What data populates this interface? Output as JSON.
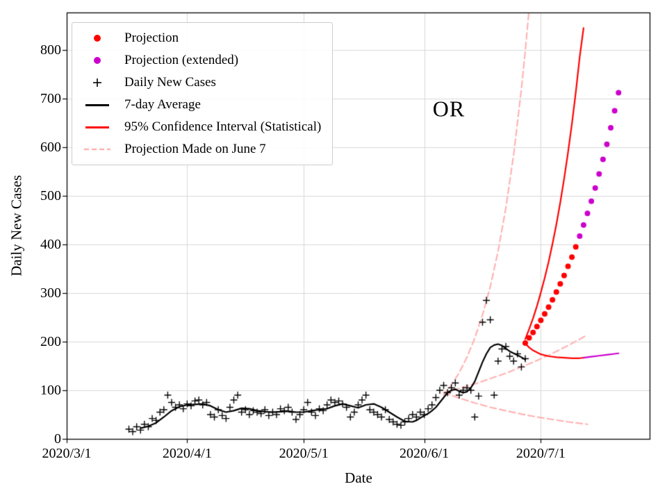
{
  "chart_data": {
    "type": "line",
    "title": "",
    "annotation": {
      "text": "OR"
    },
    "grid": true,
    "legend_position": "upper left",
    "colors": {
      "projection": "#ff0000",
      "projection_extended": "#cc00cc",
      "daily_cases": "#000000",
      "average": "#000000",
      "confidence_interval": "#ff0000",
      "june7_projection": "#ffb3b3",
      "gridline": "#d8d8d8"
    },
    "x_axis": {
      "label": "Date",
      "unit": "days since 2020/3/1",
      "range": [
        0,
        150
      ],
      "ticks": [
        {
          "day": 0,
          "label": "2020/3/1"
        },
        {
          "day": 31,
          "label": "2020/4/1"
        },
        {
          "day": 61,
          "label": "2020/5/1"
        },
        {
          "day": 92,
          "label": "2020/6/1"
        },
        {
          "day": 122,
          "label": "2020/7/1"
        }
      ]
    },
    "y_axis": {
      "label": "Daily New Cases",
      "range": [
        0,
        877
      ],
      "ticks": [
        {
          "value": 0,
          "label": "0"
        },
        {
          "value": 100,
          "label": "100"
        },
        {
          "value": 200,
          "label": "200"
        },
        {
          "value": 300,
          "label": "300"
        },
        {
          "value": 400,
          "label": "400"
        },
        {
          "value": 500,
          "label": "500"
        },
        {
          "value": 600,
          "label": "600"
        },
        {
          "value": 700,
          "label": "700"
        },
        {
          "value": 800,
          "label": "800"
        }
      ]
    },
    "series": [
      {
        "name": "Projection Made on June 7 (upper bound)",
        "type": "line",
        "color": "#ffb3b3",
        "dash": [
          9,
          5
        ],
        "width": 2.2,
        "points": [
          [
            97,
            90
          ],
          [
            99,
            111
          ],
          [
            101,
            136
          ],
          [
            103,
            168
          ],
          [
            105,
            207
          ],
          [
            107,
            255
          ],
          [
            109,
            313
          ],
          [
            111,
            386
          ],
          [
            113,
            475
          ],
          [
            115,
            584
          ],
          [
            117,
            719
          ],
          [
            118,
            798
          ],
          [
            119,
            885
          ]
        ]
      },
      {
        "name": "Projection Made on June 7 (central)",
        "type": "line",
        "color": "#ffb3b3",
        "dash": [
          9,
          5
        ],
        "width": 2.2,
        "points": [
          [
            97,
            95
          ],
          [
            101,
            104
          ],
          [
            105,
            113
          ],
          [
            109,
            124
          ],
          [
            113,
            135
          ],
          [
            117,
            148
          ],
          [
            121,
            161
          ],
          [
            125,
            176
          ],
          [
            129,
            192
          ],
          [
            132,
            205
          ],
          [
            134,
            214
          ]
        ]
      },
      {
        "name": "Projection Made on June 7 (lower bound)",
        "type": "line",
        "color": "#ffb3b3",
        "dash": [
          9,
          5
        ],
        "width": 2.2,
        "points": [
          [
            97,
            95
          ],
          [
            101,
            84
          ],
          [
            105,
            74
          ],
          [
            109,
            65
          ],
          [
            113,
            58
          ],
          [
            117,
            51
          ],
          [
            121,
            45
          ],
          [
            125,
            40
          ],
          [
            129,
            35
          ],
          [
            132,
            32
          ],
          [
            134,
            30
          ]
        ]
      },
      {
        "name": "7-day Average",
        "type": "line",
        "color": "#000000",
        "width": 2.2,
        "points": [
          [
            19,
            22
          ],
          [
            21,
            26
          ],
          [
            23,
            33
          ],
          [
            25,
            45
          ],
          [
            27,
            58
          ],
          [
            29,
            66
          ],
          [
            31,
            70
          ],
          [
            33,
            71
          ],
          [
            35,
            72
          ],
          [
            37,
            68
          ],
          [
            39,
            60
          ],
          [
            41,
            55
          ],
          [
            43,
            58
          ],
          [
            45,
            63
          ],
          [
            47,
            62
          ],
          [
            49,
            58
          ],
          [
            51,
            56
          ],
          [
            53,
            55
          ],
          [
            55,
            56
          ],
          [
            57,
            57
          ],
          [
            59,
            55
          ],
          [
            61,
            55
          ],
          [
            63,
            58
          ],
          [
            65,
            60
          ],
          [
            67,
            62
          ],
          [
            69,
            68
          ],
          [
            71,
            72
          ],
          [
            73,
            68
          ],
          [
            75,
            64
          ],
          [
            77,
            70
          ],
          [
            79,
            72
          ],
          [
            81,
            65
          ],
          [
            83,
            55
          ],
          [
            85,
            45
          ],
          [
            87,
            36
          ],
          [
            89,
            35
          ],
          [
            90,
            38
          ],
          [
            91,
            43
          ],
          [
            92,
            48
          ],
          [
            93,
            52
          ],
          [
            94,
            58
          ],
          [
            95,
            65
          ],
          [
            96,
            75
          ],
          [
            97,
            85
          ],
          [
            98,
            95
          ],
          [
            99,
            100
          ],
          [
            100,
            102
          ],
          [
            101,
            98
          ],
          [
            102,
            95
          ],
          [
            103,
            97
          ],
          [
            104,
            105
          ],
          [
            105,
            118
          ],
          [
            106,
            138
          ],
          [
            107,
            158
          ],
          [
            108,
            175
          ],
          [
            109,
            188
          ],
          [
            110,
            193
          ],
          [
            111,
            195
          ],
          [
            112,
            192
          ],
          [
            113,
            186
          ],
          [
            114,
            180
          ],
          [
            115,
            176
          ],
          [
            116,
            172
          ],
          [
            117,
            168
          ],
          [
            118,
            163
          ]
        ]
      },
      {
        "name": "Daily New Cases",
        "type": "scatter",
        "marker": "plus",
        "color": "#000000",
        "size": 9,
        "points": [
          [
            16,
            20
          ],
          [
            17,
            15
          ],
          [
            18,
            25
          ],
          [
            19,
            18
          ],
          [
            20,
            30
          ],
          [
            21,
            25
          ],
          [
            22,
            42
          ],
          [
            23,
            38
          ],
          [
            24,
            55
          ],
          [
            25,
            60
          ],
          [
            26,
            90
          ],
          [
            27,
            75
          ],
          [
            28,
            65
          ],
          [
            29,
            70
          ],
          [
            30,
            62
          ],
          [
            31,
            72
          ],
          [
            32,
            68
          ],
          [
            33,
            78
          ],
          [
            34,
            80
          ],
          [
            35,
            70
          ],
          [
            36,
            75
          ],
          [
            37,
            50
          ],
          [
            38,
            45
          ],
          [
            39,
            60
          ],
          [
            40,
            48
          ],
          [
            41,
            42
          ],
          [
            42,
            65
          ],
          [
            43,
            80
          ],
          [
            44,
            90
          ],
          [
            45,
            55
          ],
          [
            46,
            60
          ],
          [
            47,
            50
          ],
          [
            48,
            58
          ],
          [
            49,
            55
          ],
          [
            50,
            52
          ],
          [
            51,
            60
          ],
          [
            52,
            48
          ],
          [
            53,
            55
          ],
          [
            54,
            50
          ],
          [
            55,
            62
          ],
          [
            56,
            58
          ],
          [
            57,
            65
          ],
          [
            58,
            55
          ],
          [
            59,
            40
          ],
          [
            60,
            50
          ],
          [
            61,
            60
          ],
          [
            62,
            75
          ],
          [
            63,
            55
          ],
          [
            64,
            48
          ],
          [
            65,
            62
          ],
          [
            66,
            58
          ],
          [
            67,
            70
          ],
          [
            68,
            80
          ],
          [
            69,
            75
          ],
          [
            70,
            78
          ],
          [
            71,
            72
          ],
          [
            72,
            65
          ],
          [
            73,
            45
          ],
          [
            74,
            55
          ],
          [
            75,
            70
          ],
          [
            76,
            80
          ],
          [
            77,
            90
          ],
          [
            78,
            60
          ],
          [
            79,
            55
          ],
          [
            80,
            50
          ],
          [
            81,
            45
          ],
          [
            82,
            60
          ],
          [
            83,
            40
          ],
          [
            84,
            35
          ],
          [
            85,
            30
          ],
          [
            86,
            28
          ],
          [
            87,
            35
          ],
          [
            88,
            42
          ],
          [
            89,
            50
          ],
          [
            90,
            45
          ],
          [
            91,
            55
          ],
          [
            92,
            50
          ],
          [
            93,
            62
          ],
          [
            94,
            70
          ],
          [
            95,
            85
          ],
          [
            96,
            100
          ],
          [
            97,
            110
          ],
          [
            98,
            95
          ],
          [
            99,
            105
          ],
          [
            100,
            115
          ],
          [
            101,
            90
          ],
          [
            102,
            100
          ],
          [
            103,
            105
          ],
          [
            104,
            100
          ],
          [
            105,
            45
          ],
          [
            106,
            88
          ],
          [
            107,
            240
          ],
          [
            108,
            285
          ],
          [
            109,
            245
          ],
          [
            110,
            90
          ],
          [
            111,
            160
          ],
          [
            112,
            185
          ],
          [
            113,
            190
          ],
          [
            114,
            170
          ],
          [
            115,
            160
          ],
          [
            116,
            175
          ],
          [
            117,
            148
          ],
          [
            118,
            165
          ]
        ]
      },
      {
        "name": "95% Confidence Interval upper",
        "type": "line",
        "color": "#ff0000",
        "width": 2.2,
        "points": [
          [
            118,
            205
          ],
          [
            119,
            226
          ],
          [
            120,
            248
          ],
          [
            121,
            273
          ],
          [
            122,
            301
          ],
          [
            123,
            331
          ],
          [
            124,
            364
          ],
          [
            125,
            401
          ],
          [
            126,
            441
          ],
          [
            127,
            486
          ],
          [
            128,
            535
          ],
          [
            129,
            589
          ],
          [
            130,
            648
          ],
          [
            131,
            713
          ],
          [
            132,
            785
          ],
          [
            133,
            845
          ]
        ]
      },
      {
        "name": "95% Confidence Interval lower",
        "type": "line",
        "color": "#ff0000",
        "width": 2.2,
        "points": [
          [
            118,
            196
          ],
          [
            119,
            188
          ],
          [
            120,
            182
          ],
          [
            122,
            174
          ],
          [
            124,
            170
          ],
          [
            126,
            168
          ],
          [
            128,
            167
          ],
          [
            130,
            166
          ],
          [
            132,
            166
          ],
          [
            133,
            167
          ]
        ]
      },
      {
        "name": "95% Confidence Interval lower (extended)",
        "type": "line",
        "color": "#cc00cc",
        "width": 2.2,
        "points": [
          [
            133,
            167
          ],
          [
            135,
            169
          ],
          [
            137,
            171
          ],
          [
            139,
            173
          ],
          [
            141,
            175
          ],
          [
            142,
            176
          ]
        ]
      },
      {
        "name": "Projection",
        "type": "scatter",
        "marker": "dot",
        "color": "#ff0000",
        "size": 4,
        "points": [
          [
            118,
            197
          ],
          [
            119,
            208
          ],
          [
            120,
            219
          ],
          [
            121,
            231
          ],
          [
            122,
            244
          ],
          [
            123,
            257
          ],
          [
            124,
            271
          ],
          [
            125,
            286
          ],
          [
            126,
            302
          ],
          [
            127,
            319
          ],
          [
            128,
            336
          ],
          [
            129,
            355
          ],
          [
            130,
            374
          ],
          [
            131,
            395
          ]
        ]
      },
      {
        "name": "Projection (extended)",
        "type": "scatter",
        "marker": "dot",
        "color": "#cc00cc",
        "size": 4,
        "points": [
          [
            132,
            417
          ],
          [
            133,
            440
          ],
          [
            134,
            464
          ],
          [
            135,
            489
          ],
          [
            136,
            516
          ],
          [
            137,
            545
          ],
          [
            138,
            575
          ],
          [
            139,
            606
          ],
          [
            140,
            640
          ],
          [
            141,
            675
          ],
          [
            142,
            712
          ]
        ]
      }
    ]
  },
  "legend": {
    "items": [
      {
        "label": "Projection",
        "marker": "dot",
        "color": "#ff0000"
      },
      {
        "label": "Projection (extended)",
        "marker": "dot",
        "color": "#cc00cc"
      },
      {
        "label": "Daily New Cases",
        "marker": "plus",
        "color": "#000000"
      },
      {
        "label": "7-day Average",
        "marker": "line",
        "color": "#000000"
      },
      {
        "label": "95% Confidence Interval (Statistical)",
        "marker": "line",
        "color": "#ff0000"
      },
      {
        "label": "Projection Made on June 7",
        "marker": "dashed-line",
        "color": "#ffb3b3"
      }
    ]
  }
}
